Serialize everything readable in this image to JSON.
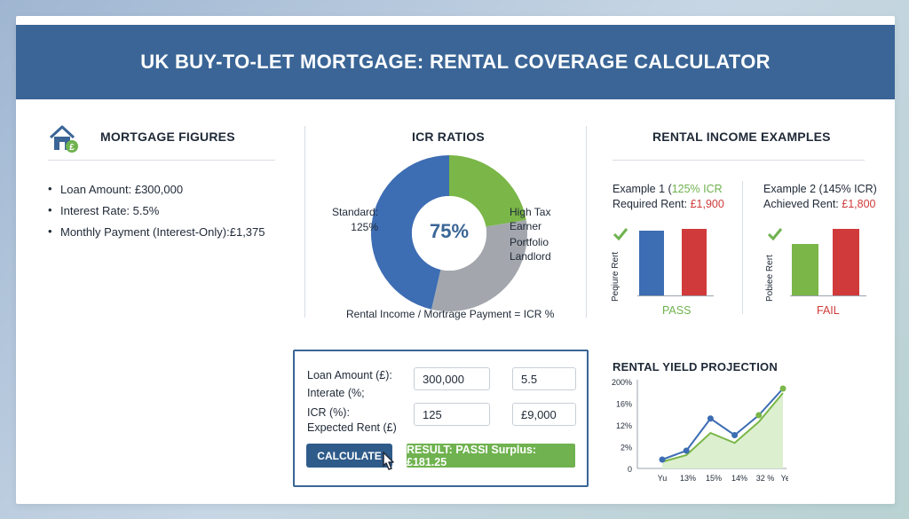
{
  "header": {
    "title": "UK BUY-TO-LET MORTGAGE: RENTAL COVERAGE CALCULATOR"
  },
  "colors": {
    "header_bg": "#3a6596",
    "blue": "#3d6db3",
    "green": "#7ab648",
    "red": "#d03a3a",
    "grey": "#a3a7ad"
  },
  "mortgage": {
    "title": "MORTGAGE FIGURES",
    "icon": "house-pound-icon",
    "items": [
      "Loan Amount: £300,000",
      "Interest Rate: 5.5%",
      "Monthly Payment (Interest-Only):£1,375"
    ]
  },
  "icr": {
    "title": "ICR RATIOS",
    "center": "75%",
    "left_label_1": "Standard:",
    "left_label_2": "125%",
    "right_label_1": "High Tax",
    "right_label_2": "Earner",
    "right_label_3": "Portfolio",
    "right_label_4": "Landlord",
    "formula": "Rental Income / Mortrage Payment = ICR %"
  },
  "examples": {
    "title": "RENTAL INCOME EXAMPLES",
    "ex1": {
      "line1_prefix": "Example 1 (",
      "line1_highlight": "125% ICR",
      "line2_prefix": "Required Rent: ",
      "line2_value": "£1,900",
      "axis_label": "Peqiure Rert",
      "status": "PASS",
      "bars": [
        100,
        102
      ]
    },
    "ex2": {
      "line1": "Example 2 (145% ICR)",
      "line2_prefix": "Achieved Rent: ",
      "line2_value": "£1,800",
      "axis_label": "Pobiee Rert",
      "status": "FAIL",
      "bars": [
        78,
        100
      ]
    }
  },
  "form": {
    "loan_label": "Loan Amount (£):",
    "interest_label": "Interate (%;",
    "icr_label": "ICR (%):",
    "rent_label": "Expected Rent (£)",
    "loan_value": "300,000",
    "rate_value": "5.5",
    "icr_value": "125",
    "rent_value": "£9,000",
    "calculate": "CALCULATE",
    "result": "RESULT: PASSI Surplus: £181.25"
  },
  "chart_data": {
    "type": "line",
    "title": "RENTAL YIELD PROJECTION",
    "ytick_labels": [
      "200%",
      "16%",
      "12%",
      "2%",
      "0"
    ],
    "xtick_labels": [
      "Yu",
      "13%",
      "15%",
      "14%",
      "32 %",
      "Years"
    ],
    "series": [
      {
        "values": [
          0.8,
          1.6,
          4.5,
          3.0,
          4.8,
          7.2
        ]
      },
      {
        "values": [
          0.6,
          1.2,
          3.2,
          2.3,
          4.2,
          6.8
        ]
      }
    ],
    "ylim": [
      0,
      8
    ],
    "grid": false
  }
}
